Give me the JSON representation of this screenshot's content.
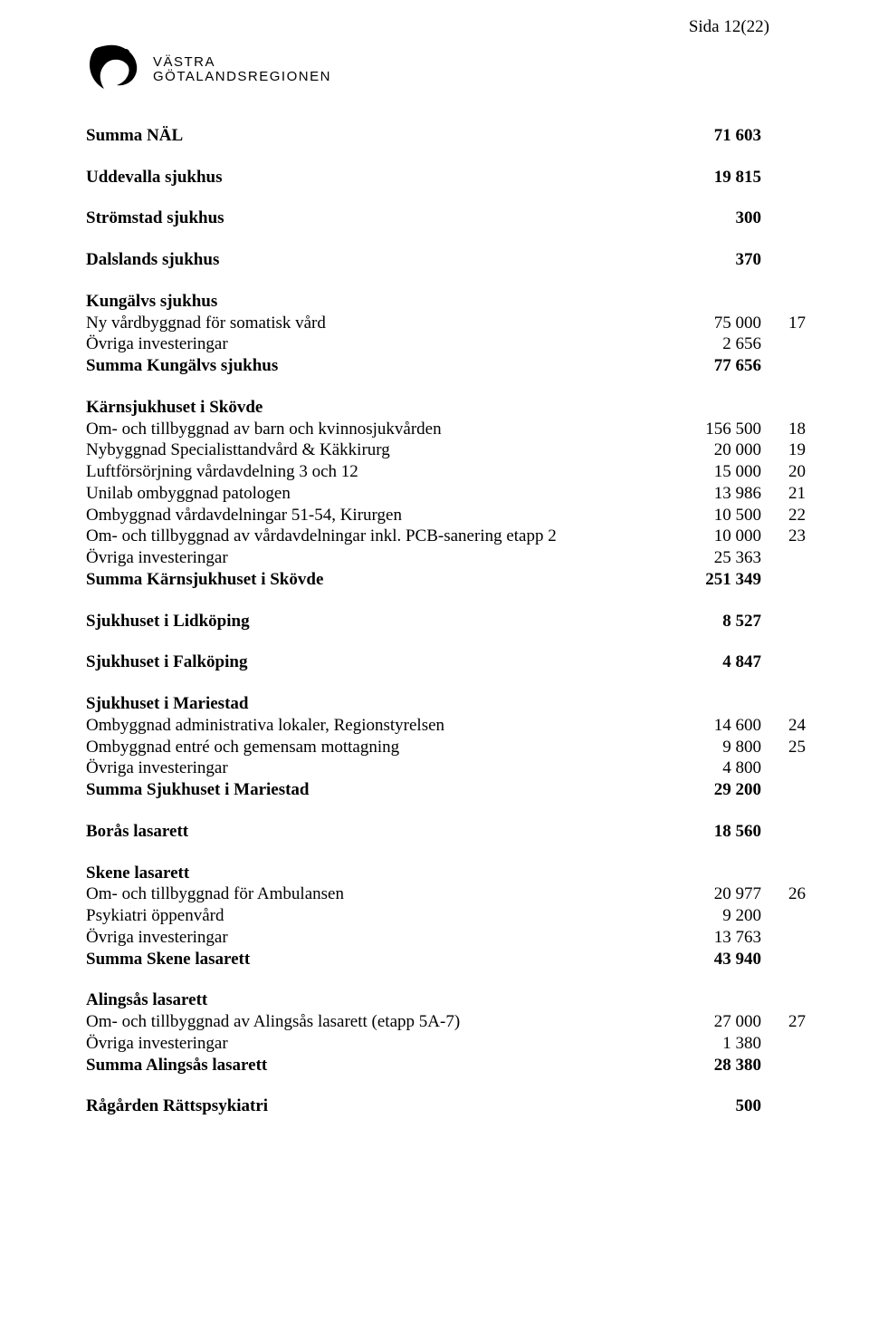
{
  "page_number": "Sida 12(22)",
  "logo": {
    "line1": "VÄSTRA",
    "line2": "GÖTALANDSREGIONEN"
  },
  "sections": [
    {
      "label": "Summa NÄL",
      "v1": "71 603",
      "bold": true,
      "gap_after": "med"
    },
    {
      "label": "Uddevalla sjukhus",
      "v1": "19 815",
      "bold": true,
      "gap_after": "med"
    },
    {
      "label": "Strömstad sjukhus",
      "v1": "300",
      "bold": true,
      "gap_after": "med"
    },
    {
      "label": "Dalslands sjukhus",
      "v1": "370",
      "bold": true,
      "gap_after": "med"
    },
    {
      "label": "Kungälvs sjukhus",
      "bold": true
    },
    {
      "label": "Ny vårdbyggnad för somatisk vård",
      "v1": "75 000",
      "v2": "17"
    },
    {
      "label": "Övriga investeringar",
      "v1": "2 656"
    },
    {
      "label": "Summa Kungälvs sjukhus",
      "v1": "77 656",
      "bold": true,
      "gap_after": "med"
    },
    {
      "label": "Kärnsjukhuset i Skövde",
      "bold": true
    },
    {
      "label": "Om- och tillbyggnad av barn och kvinnosjukvården",
      "v1": "156 500",
      "v2": "18"
    },
    {
      "label": "Nybyggnad Specialisttandvård & Käkkirurg",
      "v1": "20 000",
      "v2": "19"
    },
    {
      "label": "Luftförsörjning vårdavdelning 3 och 12",
      "v1": "15 000",
      "v2": "20"
    },
    {
      "label": "Unilab ombyggnad patologen",
      "v1": "13 986",
      "v2": "21"
    },
    {
      "label": "Ombyggnad vårdavdelningar 51-54, Kirurgen",
      "v1": "10 500",
      "v2": "22"
    },
    {
      "label": "Om- och tillbyggnad av vårdavdelningar inkl. PCB-sanering etapp 2",
      "v1": "10 000",
      "v2": "23"
    },
    {
      "label": "Övriga investeringar",
      "v1": "25 363"
    },
    {
      "label": "Summa Kärnsjukhuset i Skövde",
      "v1": "251 349",
      "bold": true,
      "gap_after": "med"
    },
    {
      "label": "Sjukhuset i Lidköping",
      "v1": "8 527",
      "bold": true,
      "gap_after": "med"
    },
    {
      "label": "Sjukhuset i Falköping",
      "v1": "4 847",
      "bold": true,
      "gap_after": "med"
    },
    {
      "label": "Sjukhuset i Mariestad",
      "bold": true
    },
    {
      "label": "Ombyggnad administrativa lokaler, Regionstyrelsen",
      "v1": "14 600",
      "v2": "24"
    },
    {
      "label": "Ombyggnad entré och gemensam mottagning",
      "v1": "9 800",
      "v2": "25"
    },
    {
      "label": "Övriga investeringar",
      "v1": "4 800"
    },
    {
      "label": "Summa Sjukhuset i Mariestad",
      "v1": "29 200",
      "bold": true,
      "gap_after": "med"
    },
    {
      "label": "Borås lasarett",
      "v1": "18 560",
      "bold": true,
      "gap_after": "med"
    },
    {
      "label": "Skene lasarett",
      "bold": true
    },
    {
      "label": "Om- och tillbyggnad för Ambulansen",
      "v1": "20 977",
      "v2": "26"
    },
    {
      "label": "Psykiatri öppenvård",
      "v1": "9 200"
    },
    {
      "label": "Övriga investeringar",
      "v1": "13 763"
    },
    {
      "label": "Summa Skene lasarett",
      "v1": "43 940",
      "bold": true,
      "gap_after": "med"
    },
    {
      "label": "Alingsås lasarett",
      "bold": true
    },
    {
      "label": "Om- och tillbyggnad av Alingsås lasarett (etapp 5A-7)",
      "v1": "27 000",
      "v2": "27"
    },
    {
      "label": "Övriga investeringar",
      "v1": "1 380"
    },
    {
      "label": "Summa Alingsås lasarett",
      "v1": "28 380",
      "bold": true,
      "gap_after": "med"
    },
    {
      "label": "Rågården Rättspsykiatri",
      "v1": "500",
      "bold": true
    }
  ]
}
